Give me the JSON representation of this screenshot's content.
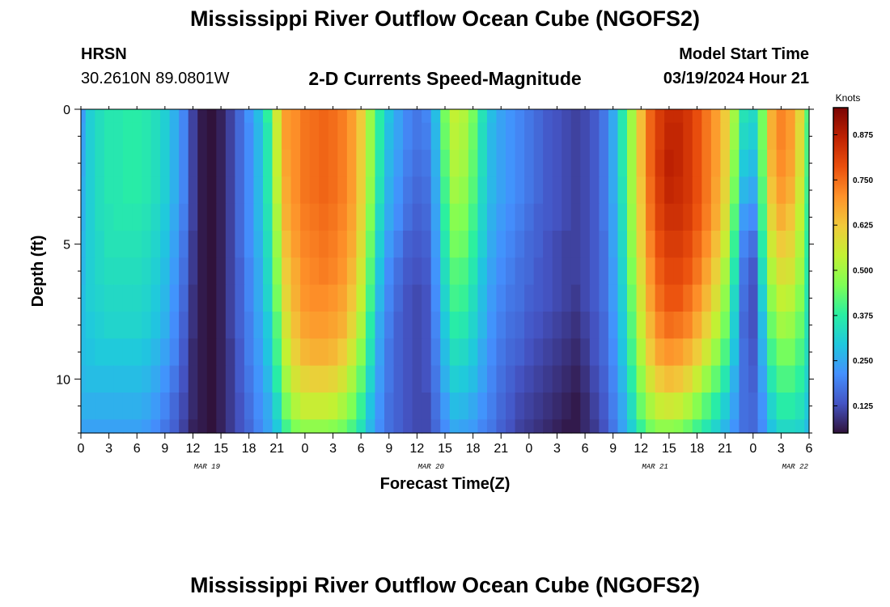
{
  "page": {
    "title_top": "Mississippi River Outflow Ocean Cube (NGOFS2)",
    "title_bottom": "Mississippi River Outflow Ocean Cube (NGOFS2)",
    "station_id": "HRSN",
    "station_coords": "30.2610N  89.0801W",
    "chart_subtitle": "2-D Currents Speed-Magnitude",
    "model_label": "Model Start Time",
    "model_time": "03/19/2024 Hour 21"
  },
  "chart_data": {
    "type": "heatmap",
    "title": "Mississippi River Outflow Ocean Cube (NGOFS2)",
    "subtitle": "2-D Currents Speed-Magnitude",
    "xlabel": "Forecast Time(Z)",
    "ylabel": "Depth (ft)",
    "colorbar_label": "Knots",
    "x_tick_labels": [
      "0",
      "3",
      "6",
      "9",
      "12",
      "15",
      "18",
      "21",
      "0",
      "3",
      "6",
      "9",
      "12",
      "15",
      "18",
      "21",
      "0",
      "3",
      "6",
      "9",
      "12",
      "15",
      "18",
      "21",
      "0",
      "3",
      "6"
    ],
    "x_date_labels": [
      {
        "label": "MAR 19",
        "hour": 13.5
      },
      {
        "label": "MAR 20",
        "hour": 37.5
      },
      {
        "label": "MAR 21",
        "hour": 61.5
      },
      {
        "label": "MAR 22",
        "hour": 76.5
      }
    ],
    "x_range_hours": [
      0,
      78
    ],
    "y_tick_labels": [
      "0",
      "5",
      "10"
    ],
    "y_ticks": [
      0,
      5,
      10
    ],
    "ylim": [
      12,
      0
    ],
    "colorbar_ticks": [
      0.125,
      0.25,
      0.375,
      0.5,
      0.625,
      0.75,
      0.875
    ],
    "colorbar_tick_labels": [
      "0.125",
      "0.250",
      "0.375",
      "0.500",
      "0.625",
      "0.750",
      "0.875"
    ],
    "color_range": [
      0.05,
      0.95
    ],
    "colormap": [
      "#30123b",
      "#4454c4",
      "#4490fe",
      "#1fc8de",
      "#29efa2",
      "#7eff55",
      "#c3f133",
      "#f1ca3a",
      "#fe922a",
      "#ea4f0d",
      "#be2102",
      "#7a0403"
    ],
    "depths_ft": [
      0,
      1,
      2,
      3,
      4,
      5,
      6,
      7,
      8,
      9,
      10,
      11,
      12
    ],
    "hours": [
      0,
      1,
      2,
      3,
      4,
      5,
      6,
      7,
      8,
      9,
      10,
      11,
      12,
      13,
      14,
      15,
      16,
      17,
      18,
      19,
      20,
      21,
      22,
      23,
      24,
      25,
      26,
      27,
      28,
      29,
      30,
      31,
      32,
      33,
      34,
      35,
      36,
      37,
      38,
      39,
      40,
      41,
      42,
      43,
      44,
      45,
      46,
      47,
      48,
      49,
      50,
      51,
      52,
      53,
      54,
      55,
      56,
      57,
      58,
      59,
      60,
      61,
      62,
      63,
      64,
      65,
      66,
      67,
      68,
      69,
      70,
      71,
      72,
      73,
      74,
      75,
      76,
      77,
      78
    ],
    "speed_knots": [
      [
        0.23,
        0.31,
        0.34,
        0.36,
        0.36,
        0.37,
        0.37,
        0.36,
        0.34,
        0.31,
        0.26,
        0.2,
        0.11,
        0.06,
        0.05,
        0.07,
        0.11,
        0.16,
        0.22,
        0.28,
        0.38,
        0.56,
        0.69,
        0.71,
        0.74,
        0.75,
        0.76,
        0.75,
        0.73,
        0.69,
        0.62,
        0.49,
        0.37,
        0.29,
        0.24,
        0.2,
        0.18,
        0.2,
        0.28,
        0.45,
        0.54,
        0.52,
        0.45,
        0.35,
        0.28,
        0.24,
        0.22,
        0.2,
        0.18,
        0.16,
        0.14,
        0.13,
        0.12,
        0.11,
        0.12,
        0.14,
        0.18,
        0.25,
        0.36,
        0.5,
        0.64,
        0.76,
        0.82,
        0.85,
        0.85,
        0.83,
        0.79,
        0.74,
        0.69,
        0.62,
        0.5,
        0.35,
        0.33,
        0.45,
        0.66,
        0.72,
        0.69,
        0.6,
        0.42
      ],
      [
        0.24,
        0.31,
        0.34,
        0.36,
        0.36,
        0.37,
        0.37,
        0.36,
        0.34,
        0.31,
        0.26,
        0.2,
        0.11,
        0.06,
        0.05,
        0.07,
        0.11,
        0.16,
        0.21,
        0.27,
        0.36,
        0.55,
        0.69,
        0.71,
        0.74,
        0.75,
        0.76,
        0.75,
        0.73,
        0.69,
        0.62,
        0.49,
        0.37,
        0.28,
        0.24,
        0.2,
        0.18,
        0.19,
        0.27,
        0.44,
        0.53,
        0.51,
        0.44,
        0.34,
        0.27,
        0.24,
        0.22,
        0.2,
        0.18,
        0.16,
        0.14,
        0.13,
        0.12,
        0.11,
        0.12,
        0.14,
        0.18,
        0.25,
        0.36,
        0.5,
        0.64,
        0.76,
        0.82,
        0.86,
        0.86,
        0.83,
        0.79,
        0.74,
        0.69,
        0.62,
        0.49,
        0.33,
        0.31,
        0.45,
        0.66,
        0.72,
        0.69,
        0.59,
        0.41
      ],
      [
        0.25,
        0.31,
        0.34,
        0.36,
        0.36,
        0.37,
        0.37,
        0.36,
        0.34,
        0.31,
        0.26,
        0.2,
        0.11,
        0.06,
        0.05,
        0.07,
        0.11,
        0.16,
        0.21,
        0.27,
        0.36,
        0.54,
        0.68,
        0.71,
        0.74,
        0.75,
        0.76,
        0.75,
        0.73,
        0.69,
        0.61,
        0.49,
        0.36,
        0.27,
        0.23,
        0.19,
        0.17,
        0.18,
        0.26,
        0.42,
        0.52,
        0.5,
        0.43,
        0.34,
        0.27,
        0.24,
        0.22,
        0.2,
        0.18,
        0.16,
        0.14,
        0.13,
        0.12,
        0.11,
        0.12,
        0.14,
        0.18,
        0.25,
        0.36,
        0.5,
        0.64,
        0.76,
        0.83,
        0.87,
        0.86,
        0.83,
        0.79,
        0.74,
        0.69,
        0.61,
        0.47,
        0.3,
        0.28,
        0.44,
        0.65,
        0.71,
        0.68,
        0.58,
        0.41
      ],
      [
        0.26,
        0.31,
        0.34,
        0.36,
        0.36,
        0.37,
        0.37,
        0.36,
        0.34,
        0.31,
        0.26,
        0.2,
        0.11,
        0.06,
        0.05,
        0.07,
        0.11,
        0.16,
        0.21,
        0.27,
        0.36,
        0.53,
        0.67,
        0.71,
        0.74,
        0.75,
        0.76,
        0.75,
        0.73,
        0.69,
        0.61,
        0.48,
        0.35,
        0.26,
        0.22,
        0.18,
        0.16,
        0.17,
        0.25,
        0.4,
        0.5,
        0.48,
        0.42,
        0.33,
        0.27,
        0.24,
        0.22,
        0.2,
        0.18,
        0.16,
        0.14,
        0.13,
        0.12,
        0.11,
        0.12,
        0.14,
        0.18,
        0.25,
        0.35,
        0.5,
        0.63,
        0.75,
        0.82,
        0.86,
        0.85,
        0.83,
        0.79,
        0.74,
        0.68,
        0.6,
        0.45,
        0.27,
        0.25,
        0.42,
        0.63,
        0.69,
        0.66,
        0.56,
        0.4
      ],
      [
        0.26,
        0.31,
        0.34,
        0.35,
        0.36,
        0.36,
        0.36,
        0.35,
        0.33,
        0.3,
        0.25,
        0.19,
        0.11,
        0.06,
        0.05,
        0.07,
        0.11,
        0.16,
        0.21,
        0.27,
        0.35,
        0.51,
        0.66,
        0.7,
        0.73,
        0.74,
        0.75,
        0.74,
        0.72,
        0.68,
        0.6,
        0.46,
        0.33,
        0.25,
        0.21,
        0.17,
        0.15,
        0.16,
        0.24,
        0.38,
        0.47,
        0.46,
        0.4,
        0.32,
        0.26,
        0.23,
        0.21,
        0.19,
        0.17,
        0.15,
        0.14,
        0.13,
        0.12,
        0.11,
        0.12,
        0.14,
        0.18,
        0.24,
        0.34,
        0.49,
        0.62,
        0.74,
        0.81,
        0.84,
        0.84,
        0.82,
        0.78,
        0.73,
        0.67,
        0.58,
        0.42,
        0.23,
        0.21,
        0.4,
        0.6,
        0.66,
        0.63,
        0.54,
        0.39
      ],
      [
        0.27,
        0.31,
        0.33,
        0.35,
        0.35,
        0.35,
        0.35,
        0.34,
        0.32,
        0.29,
        0.24,
        0.18,
        0.1,
        0.06,
        0.05,
        0.07,
        0.11,
        0.16,
        0.21,
        0.26,
        0.34,
        0.49,
        0.64,
        0.69,
        0.72,
        0.73,
        0.74,
        0.73,
        0.71,
        0.67,
        0.58,
        0.44,
        0.31,
        0.23,
        0.19,
        0.15,
        0.14,
        0.15,
        0.23,
        0.36,
        0.45,
        0.44,
        0.38,
        0.31,
        0.25,
        0.22,
        0.2,
        0.18,
        0.16,
        0.15,
        0.13,
        0.12,
        0.11,
        0.11,
        0.12,
        0.14,
        0.17,
        0.24,
        0.33,
        0.48,
        0.61,
        0.72,
        0.79,
        0.82,
        0.82,
        0.8,
        0.76,
        0.71,
        0.64,
        0.55,
        0.39,
        0.2,
        0.17,
        0.37,
        0.56,
        0.62,
        0.6,
        0.52,
        0.38
      ],
      [
        0.27,
        0.31,
        0.33,
        0.34,
        0.34,
        0.34,
        0.34,
        0.33,
        0.31,
        0.28,
        0.23,
        0.17,
        0.1,
        0.06,
        0.05,
        0.07,
        0.11,
        0.15,
        0.2,
        0.25,
        0.33,
        0.47,
        0.62,
        0.67,
        0.71,
        0.72,
        0.73,
        0.72,
        0.7,
        0.65,
        0.56,
        0.42,
        0.29,
        0.21,
        0.17,
        0.14,
        0.13,
        0.14,
        0.22,
        0.34,
        0.42,
        0.41,
        0.36,
        0.29,
        0.24,
        0.21,
        0.19,
        0.17,
        0.16,
        0.14,
        0.13,
        0.12,
        0.11,
        0.11,
        0.12,
        0.14,
        0.17,
        0.23,
        0.32,
        0.46,
        0.59,
        0.7,
        0.77,
        0.8,
        0.8,
        0.78,
        0.74,
        0.68,
        0.61,
        0.51,
        0.36,
        0.18,
        0.14,
        0.34,
        0.52,
        0.58,
        0.57,
        0.5,
        0.37
      ],
      [
        0.28,
        0.31,
        0.32,
        0.33,
        0.33,
        0.33,
        0.33,
        0.32,
        0.3,
        0.27,
        0.22,
        0.16,
        0.09,
        0.06,
        0.05,
        0.07,
        0.11,
        0.15,
        0.2,
        0.25,
        0.32,
        0.45,
        0.6,
        0.66,
        0.7,
        0.71,
        0.71,
        0.7,
        0.68,
        0.63,
        0.54,
        0.4,
        0.27,
        0.2,
        0.16,
        0.13,
        0.12,
        0.13,
        0.21,
        0.32,
        0.4,
        0.39,
        0.34,
        0.28,
        0.23,
        0.2,
        0.18,
        0.17,
        0.15,
        0.14,
        0.13,
        0.12,
        0.11,
        0.1,
        0.12,
        0.14,
        0.17,
        0.23,
        0.31,
        0.44,
        0.57,
        0.68,
        0.75,
        0.78,
        0.78,
        0.75,
        0.71,
        0.65,
        0.58,
        0.48,
        0.33,
        0.17,
        0.13,
        0.31,
        0.48,
        0.54,
        0.53,
        0.47,
        0.36
      ],
      [
        0.28,
        0.3,
        0.31,
        0.32,
        0.32,
        0.32,
        0.32,
        0.31,
        0.29,
        0.26,
        0.21,
        0.15,
        0.09,
        0.06,
        0.05,
        0.07,
        0.11,
        0.15,
        0.19,
        0.24,
        0.3,
        0.42,
        0.57,
        0.64,
        0.68,
        0.69,
        0.69,
        0.68,
        0.66,
        0.6,
        0.51,
        0.37,
        0.25,
        0.19,
        0.15,
        0.13,
        0.12,
        0.13,
        0.2,
        0.3,
        0.37,
        0.36,
        0.32,
        0.27,
        0.22,
        0.19,
        0.17,
        0.16,
        0.14,
        0.13,
        0.12,
        0.11,
        0.1,
        0.09,
        0.11,
        0.13,
        0.16,
        0.22,
        0.3,
        0.42,
        0.55,
        0.65,
        0.72,
        0.75,
        0.74,
        0.72,
        0.67,
        0.61,
        0.54,
        0.45,
        0.31,
        0.16,
        0.13,
        0.28,
        0.44,
        0.5,
        0.49,
        0.44,
        0.35
      ],
      [
        0.28,
        0.29,
        0.3,
        0.3,
        0.3,
        0.3,
        0.3,
        0.29,
        0.27,
        0.24,
        0.2,
        0.14,
        0.08,
        0.06,
        0.05,
        0.07,
        0.1,
        0.14,
        0.19,
        0.23,
        0.29,
        0.4,
        0.54,
        0.61,
        0.65,
        0.66,
        0.66,
        0.65,
        0.62,
        0.56,
        0.47,
        0.35,
        0.24,
        0.18,
        0.15,
        0.13,
        0.12,
        0.13,
        0.19,
        0.28,
        0.34,
        0.33,
        0.3,
        0.25,
        0.21,
        0.18,
        0.16,
        0.15,
        0.13,
        0.12,
        0.11,
        0.1,
        0.09,
        0.08,
        0.1,
        0.13,
        0.16,
        0.21,
        0.29,
        0.4,
        0.52,
        0.62,
        0.68,
        0.7,
        0.69,
        0.66,
        0.62,
        0.56,
        0.49,
        0.41,
        0.29,
        0.17,
        0.14,
        0.26,
        0.4,
        0.45,
        0.45,
        0.41,
        0.34
      ],
      [
        0.27,
        0.28,
        0.28,
        0.28,
        0.28,
        0.28,
        0.28,
        0.27,
        0.25,
        0.22,
        0.18,
        0.13,
        0.08,
        0.06,
        0.05,
        0.07,
        0.1,
        0.14,
        0.18,
        0.22,
        0.27,
        0.37,
        0.5,
        0.57,
        0.6,
        0.61,
        0.61,
        0.6,
        0.57,
        0.51,
        0.43,
        0.32,
        0.23,
        0.18,
        0.15,
        0.13,
        0.12,
        0.13,
        0.18,
        0.26,
        0.31,
        0.3,
        0.28,
        0.24,
        0.2,
        0.17,
        0.15,
        0.13,
        0.12,
        0.11,
        0.1,
        0.09,
        0.08,
        0.07,
        0.09,
        0.12,
        0.15,
        0.2,
        0.27,
        0.37,
        0.48,
        0.57,
        0.62,
        0.64,
        0.63,
        0.6,
        0.55,
        0.49,
        0.43,
        0.36,
        0.26,
        0.17,
        0.15,
        0.24,
        0.36,
        0.41,
        0.41,
        0.38,
        0.32
      ],
      [
        0.26,
        0.26,
        0.26,
        0.26,
        0.26,
        0.26,
        0.26,
        0.25,
        0.23,
        0.2,
        0.16,
        0.12,
        0.08,
        0.06,
        0.05,
        0.07,
        0.1,
        0.13,
        0.17,
        0.21,
        0.25,
        0.33,
        0.45,
        0.52,
        0.55,
        0.55,
        0.55,
        0.54,
        0.51,
        0.46,
        0.39,
        0.29,
        0.22,
        0.17,
        0.15,
        0.13,
        0.12,
        0.12,
        0.17,
        0.23,
        0.28,
        0.27,
        0.25,
        0.22,
        0.19,
        0.16,
        0.14,
        0.12,
        0.11,
        0.1,
        0.09,
        0.08,
        0.07,
        0.06,
        0.08,
        0.11,
        0.14,
        0.19,
        0.25,
        0.34,
        0.44,
        0.51,
        0.55,
        0.56,
        0.55,
        0.52,
        0.47,
        0.42,
        0.37,
        0.31,
        0.24,
        0.17,
        0.16,
        0.22,
        0.32,
        0.37,
        0.37,
        0.35,
        0.3
      ],
      [
        0.24,
        0.24,
        0.24,
        0.24,
        0.24,
        0.24,
        0.24,
        0.23,
        0.21,
        0.18,
        0.15,
        0.11,
        0.07,
        0.06,
        0.05,
        0.07,
        0.1,
        0.13,
        0.16,
        0.2,
        0.24,
        0.3,
        0.4,
        0.46,
        0.48,
        0.48,
        0.48,
        0.47,
        0.45,
        0.41,
        0.35,
        0.27,
        0.21,
        0.17,
        0.15,
        0.13,
        0.12,
        0.12,
        0.16,
        0.21,
        0.25,
        0.24,
        0.23,
        0.2,
        0.18,
        0.15,
        0.13,
        0.11,
        0.1,
        0.09,
        0.08,
        0.07,
        0.06,
        0.06,
        0.08,
        0.1,
        0.13,
        0.18,
        0.24,
        0.31,
        0.39,
        0.45,
        0.48,
        0.48,
        0.47,
        0.44,
        0.4,
        0.36,
        0.32,
        0.27,
        0.22,
        0.17,
        0.16,
        0.21,
        0.29,
        0.33,
        0.33,
        0.32,
        0.28
      ]
    ]
  }
}
